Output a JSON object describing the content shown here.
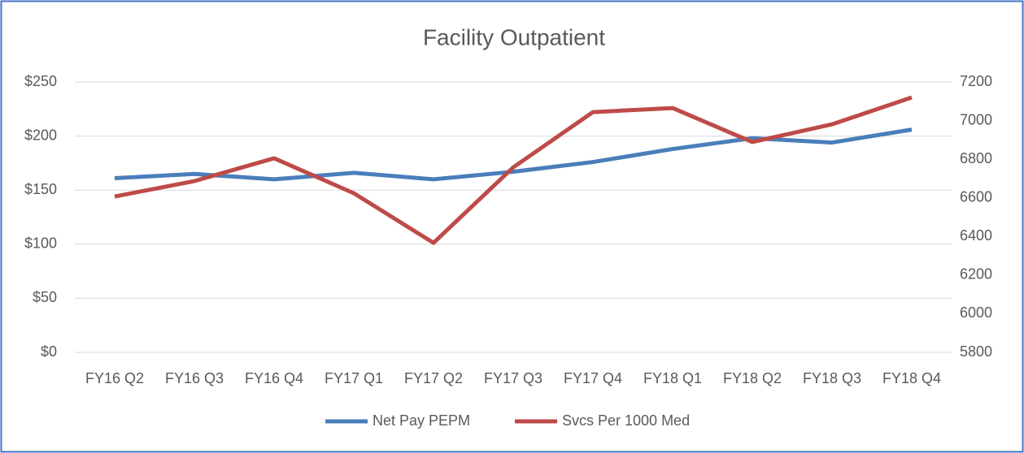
{
  "chart_data": {
    "type": "line",
    "title": "Facility Outpatient",
    "categories": [
      "FY16 Q2",
      "FY16 Q3",
      "FY16 Q4",
      "FY17 Q1",
      "FY17 Q2",
      "FY17 Q3",
      "FY17 Q4",
      "FY18 Q1",
      "FY18 Q2",
      "FY18 Q3",
      "FY18 Q4"
    ],
    "series": [
      {
        "name": "Net Pay PEPM",
        "color": "#4a7ebb",
        "values": [
          161,
          165,
          160,
          166,
          160,
          167,
          176,
          188,
          198,
          194,
          206
        ]
      },
      {
        "name": "Svcs Per 1000 Med",
        "color": "#be4b48",
        "axis": "y2",
        "values": [
          6607,
          6687,
          6805,
          6624,
          6367,
          6758,
          7044,
          7065,
          6889,
          6981,
          7120
        ]
      }
    ],
    "ylim": [
      0,
      250
    ],
    "yticks": [
      {
        "value": 0,
        "label": "$0"
      },
      {
        "value": 50,
        "label": "$50"
      },
      {
        "value": 100,
        "label": "$100"
      },
      {
        "value": 150,
        "label": "$150"
      },
      {
        "value": 200,
        "label": "$200"
      },
      {
        "value": 250,
        "label": "$250"
      }
    ],
    "y2lim": [
      5800,
      7200
    ],
    "y2ticks": [
      5800,
      6000,
      6200,
      6400,
      6600,
      6800,
      7000,
      7200
    ],
    "grid": true,
    "legend": "bottom"
  }
}
